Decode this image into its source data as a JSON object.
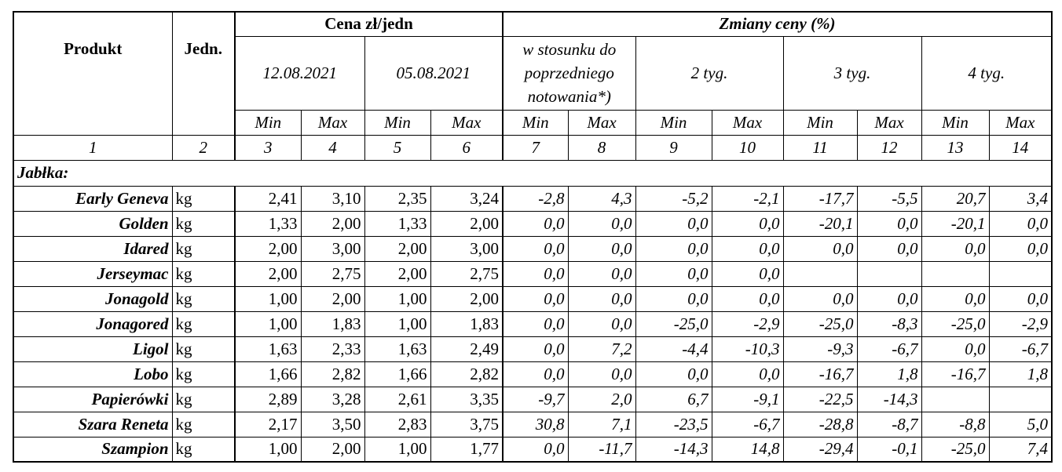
{
  "header": {
    "produkt": "Produkt",
    "jedn": "Jedn.",
    "cena": "Cena zł/jedn",
    "zmiany": "Zmiany ceny (%)",
    "date1": "12.08.2021",
    "date2": "05.08.2021",
    "prev_line1": "w stosunku do",
    "prev_line2": "poprzedniego",
    "prev_line3": "notowania*)",
    "w2": "2 tyg.",
    "w3": "3 tyg.",
    "w4": "4 tyg.",
    "min": "Min",
    "max": "Max"
  },
  "col_numbers": [
    "1",
    "2",
    "3",
    "4",
    "5",
    "6",
    "7",
    "8",
    "9",
    "10",
    "11",
    "12",
    "13",
    "14"
  ],
  "section": "Jabłka:",
  "rows": [
    {
      "name": "Early Geneva",
      "unit": "kg",
      "v": [
        "2,41",
        "3,10",
        "2,35",
        "3,24",
        "-2,8",
        "4,3",
        "-5,2",
        "-2,1",
        "-17,7",
        "-5,5",
        "20,7",
        "3,4"
      ]
    },
    {
      "name": "Golden",
      "unit": "kg",
      "v": [
        "1,33",
        "2,00",
        "1,33",
        "2,00",
        "0,0",
        "0,0",
        "0,0",
        "0,0",
        "-20,1",
        "0,0",
        "-20,1",
        "0,0"
      ]
    },
    {
      "name": "Idared",
      "unit": "kg",
      "v": [
        "2,00",
        "3,00",
        "2,00",
        "3,00",
        "0,0",
        "0,0",
        "0,0",
        "0,0",
        "0,0",
        "0,0",
        "0,0",
        "0,0"
      ]
    },
    {
      "name": "Jerseymac",
      "unit": "kg",
      "v": [
        "2,00",
        "2,75",
        "2,00",
        "2,75",
        "0,0",
        "0,0",
        "0,0",
        "0,0",
        "",
        "",
        "",
        ""
      ]
    },
    {
      "name": "Jonagold",
      "unit": "kg",
      "v": [
        "1,00",
        "2,00",
        "1,00",
        "2,00",
        "0,0",
        "0,0",
        "0,0",
        "0,0",
        "0,0",
        "0,0",
        "0,0",
        "0,0"
      ]
    },
    {
      "name": "Jonagored",
      "unit": "kg",
      "v": [
        "1,00",
        "1,83",
        "1,00",
        "1,83",
        "0,0",
        "0,0",
        "-25,0",
        "-2,9",
        "-25,0",
        "-8,3",
        "-25,0",
        "-2,9"
      ]
    },
    {
      "name": "Ligol",
      "unit": "kg",
      "v": [
        "1,63",
        "2,33",
        "1,63",
        "2,49",
        "0,0",
        "7,2",
        "-4,4",
        "-10,3",
        "-9,3",
        "-6,7",
        "0,0",
        "-6,7"
      ]
    },
    {
      "name": "Lobo",
      "unit": "kg",
      "v": [
        "1,66",
        "2,82",
        "1,66",
        "2,82",
        "0,0",
        "0,0",
        "0,0",
        "0,0",
        "-16,7",
        "1,8",
        "-16,7",
        "1,8"
      ]
    },
    {
      "name": "Papierówki",
      "unit": "kg",
      "v": [
        "2,89",
        "3,28",
        "2,61",
        "3,35",
        "-9,7",
        "2,0",
        "6,7",
        "-9,1",
        "-22,5",
        "-14,3",
        "",
        ""
      ]
    },
    {
      "name": "Szara Reneta",
      "unit": "kg",
      "v": [
        "2,17",
        "3,50",
        "2,83",
        "3,75",
        "30,8",
        "7,1",
        "-23,5",
        "-6,7",
        "-28,8",
        "-8,7",
        "-8,8",
        "5,0"
      ]
    },
    {
      "name": "Szampion",
      "unit": "kg",
      "v": [
        "1,00",
        "2,00",
        "1,00",
        "1,77",
        "0,0",
        "-11,7",
        "-14,3",
        "14,8",
        "-29,4",
        "-0,1",
        "-25,0",
        "7,4"
      ]
    }
  ]
}
